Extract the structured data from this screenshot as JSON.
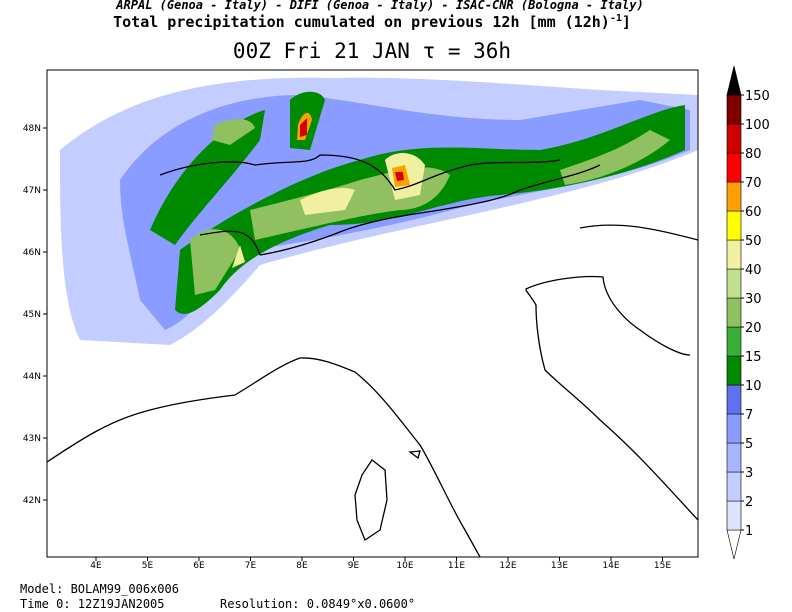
{
  "header": {
    "credits": "ARPAL (Genoa - Italy)  -  DIFI (Genoa - Italy)  -  ISAC-CNR (Bologna - Italy)",
    "title": "Total precipitation cumulated on previous 12h [mm (12h)",
    "title_sup": "-1",
    "title_end": "]",
    "subtitle": "00Z Fri 21 JAN  τ = 36h"
  },
  "map": {
    "lon_labels": [
      "4E",
      "5E",
      "6E",
      "7E",
      "8E",
      "9E",
      "10E",
      "11E",
      "12E",
      "13E",
      "14E",
      "15E"
    ],
    "lat_labels": [
      "48N",
      "47N",
      "46N",
      "45N",
      "44N",
      "43N",
      "42N"
    ]
  },
  "colorbar": {
    "levels": [
      1,
      2,
      3,
      5,
      7,
      10,
      15,
      20,
      30,
      40,
      50,
      60,
      70,
      80,
      100,
      150
    ],
    "colors": [
      "#ffffff",
      "#dde2ff",
      "#c4cdff",
      "#a8b6ff",
      "#8a9cff",
      "#6070ee",
      "#008a00",
      "#38b038",
      "#90c060",
      "#c0e090",
      "#f0f0a0",
      "#ffff00",
      "#ffa000",
      "#ff0000",
      "#d00000",
      "#800000",
      "#000000"
    ]
  },
  "footer": {
    "model": "Model: BOLAM99_006x006",
    "time": "Time 0: 12Z19JAN2005",
    "resolution": "Resolution: 0.0849°x0.0600°"
  }
}
